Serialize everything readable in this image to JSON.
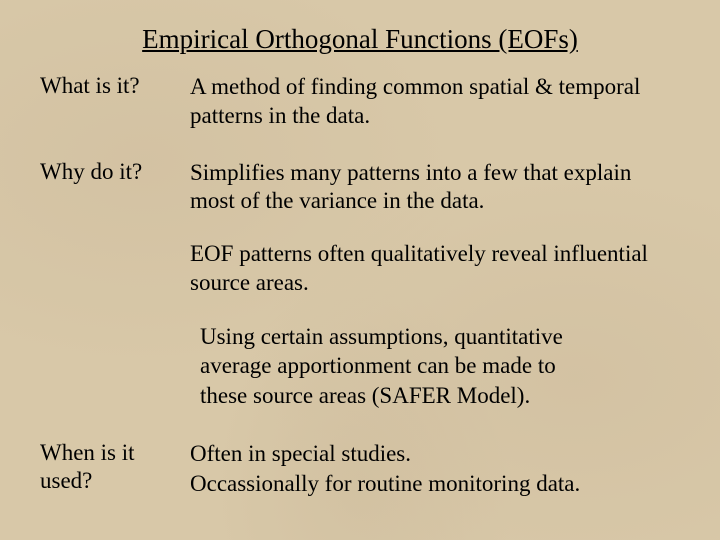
{
  "slide": {
    "title": "Empirical Orthogonal Functions (EOFs)",
    "background_color": "#d8c8a8",
    "text_color": "#000000",
    "font_family": "Times New Roman",
    "title_fontsize": 27,
    "body_fontsize": 23,
    "q1": {
      "label": "What is it?",
      "answer": "A method of finding common spatial & temporal patterns in the data."
    },
    "q2": {
      "label": "Why do it?",
      "answer1": "Simplifies many patterns into a few that explain most of the variance in the data.",
      "answer2": "EOF patterns often qualitatively reveal influential source areas.",
      "answer3": "Using certain assumptions, quantitative average apportionment can be made to these source areas (SAFER Model)."
    },
    "q3": {
      "label": "When is it used?",
      "answer_line1": "Often in special studies.",
      "answer_line2": "Occassionally for routine monitoring data."
    }
  }
}
